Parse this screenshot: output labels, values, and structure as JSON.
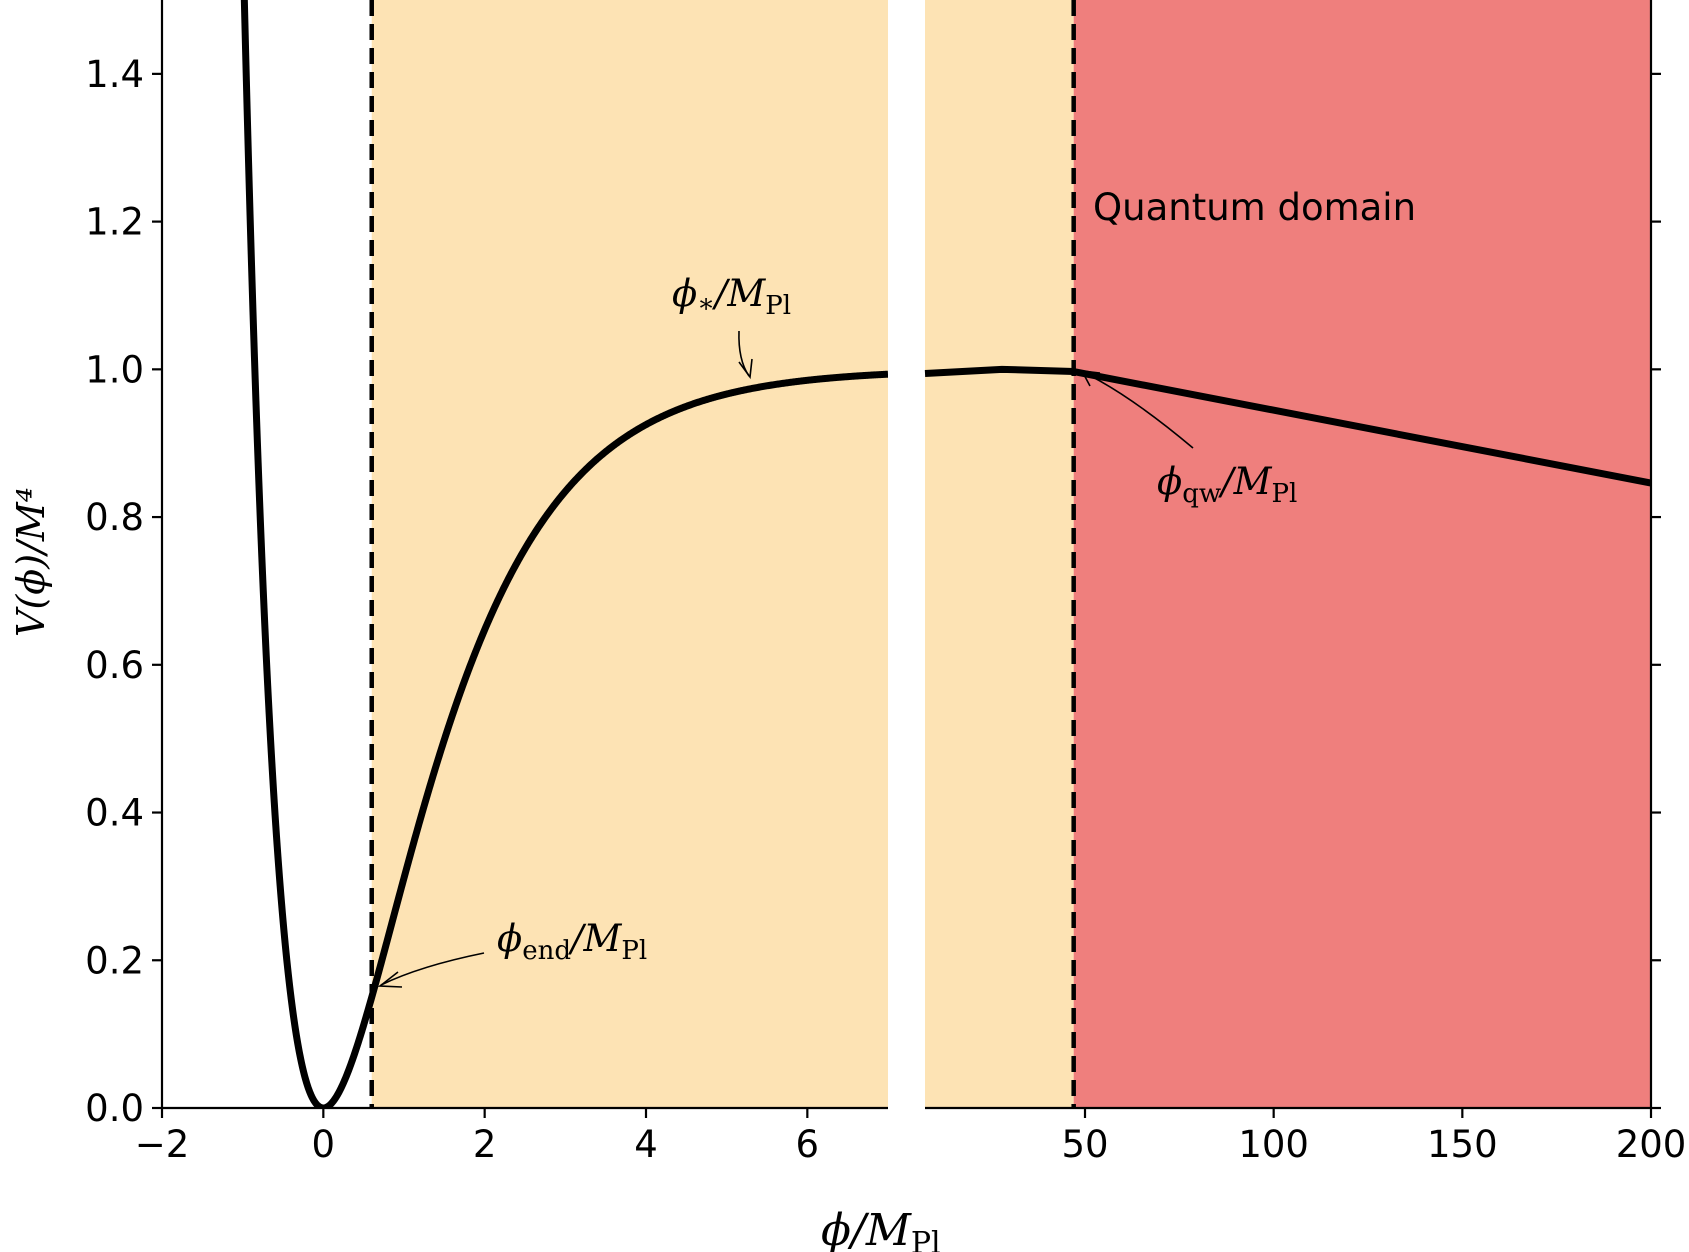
{
  "chart_data": {
    "type": "line",
    "xlabel": {
      "main": "ϕ/M",
      "sub": "Pl"
    },
    "ylabel": "V(ϕ)/M⁴",
    "ylim": [
      0,
      1.5
    ],
    "yticks": [
      "0.0",
      "0.2",
      "0.4",
      "0.6",
      "0.8",
      "1.0",
      "1.2",
      "1.4"
    ],
    "left_panel": {
      "xlim": [
        -2,
        7
      ],
      "xticks": [
        "−2",
        "0",
        "2",
        "4",
        "6"
      ],
      "xtick_values": [
        -2,
        0,
        2,
        4,
        6
      ]
    },
    "right_panel": {
      "xlim": [
        7,
        200
      ],
      "xticks": [
        "50",
        "100",
        "150",
        "200"
      ],
      "xtick_values": [
        50,
        100,
        150,
        200
      ]
    },
    "series": [
      {
        "potential": "V = (1 - exp(-sqrt(2/3) phi))^2 for phi < 28; linear decline after",
        "color": "#000000",
        "points_right": [
          [
            7,
            0.9944
          ],
          [
            28,
            1.0
          ],
          [
            47,
            0.997
          ],
          [
            200,
            0.846
          ]
        ]
      }
    ],
    "regions": [
      {
        "from": 0.6,
        "to": 47,
        "color": "#fde3b4"
      },
      {
        "from": 47,
        "to": 200,
        "color": "#ef7f7d"
      }
    ],
    "vlines": [
      {
        "x": 0.6,
        "style": "dashed"
      },
      {
        "x": 47,
        "style": "dashed"
      }
    ],
    "annotations": {
      "phi_star": {
        "main": "ϕ",
        "sub": "∗",
        "rest": "/M",
        "rest_sub": "Pl"
      },
      "phi_end": {
        "main": "ϕ",
        "sub": "end",
        "rest": "/M",
        "rest_sub": "Pl"
      },
      "phi_qw": {
        "main": "ϕ",
        "sub": "qw",
        "rest": "/M",
        "rest_sub": "Pl"
      },
      "quantum_domain": "Quantum domain"
    }
  }
}
